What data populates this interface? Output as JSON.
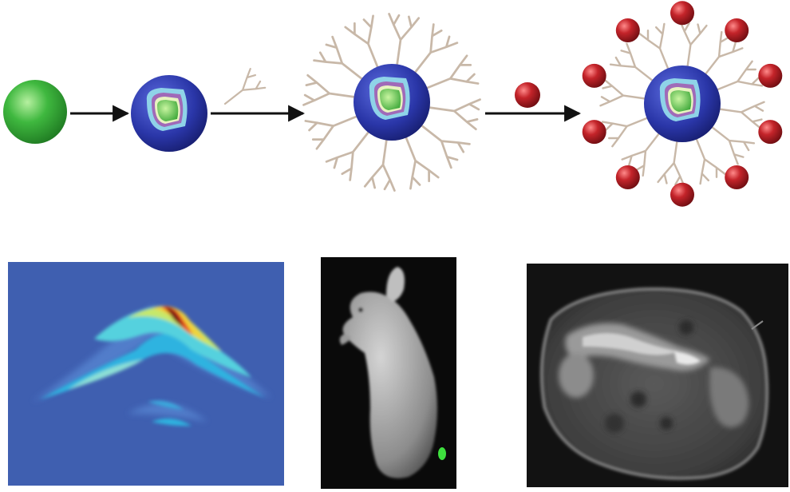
{
  "colors": {
    "plain_core": "#3fb83f",
    "shell_blue": "#2a36a8",
    "shell_inner_cyan": "#8fd3e8",
    "shell_inner_purple": "#a06ab8",
    "shell_core_green": "#55c043",
    "dendrimer_branch": "#c8b8a8",
    "payload_red": "#b01c22",
    "arrow": "#111111",
    "photoacoustic_background": "#3f5fb0",
    "fluorescence_background": "#0a0a0a",
    "fluorescence_colorbar_top": "#35c535",
    "mri_background": "#121212"
  },
  "scheme": {
    "steps": [
      {
        "kind": "plain-nanoparticle"
      },
      {
        "kind": "core-shell-nanoparticle"
      },
      {
        "kind": "dendrimer-coated-nanoparticle"
      },
      {
        "kind": "payload-loaded-nanoparticle"
      }
    ],
    "reagents": [
      "dendron-branch",
      "red-payload-sphere"
    ]
  },
  "imaging_panels": [
    {
      "kind": "photoacoustic-heatmap"
    },
    {
      "kind": "whole-body-fluorescence-mouse"
    },
    {
      "kind": "mri-cross-section"
    }
  ]
}
